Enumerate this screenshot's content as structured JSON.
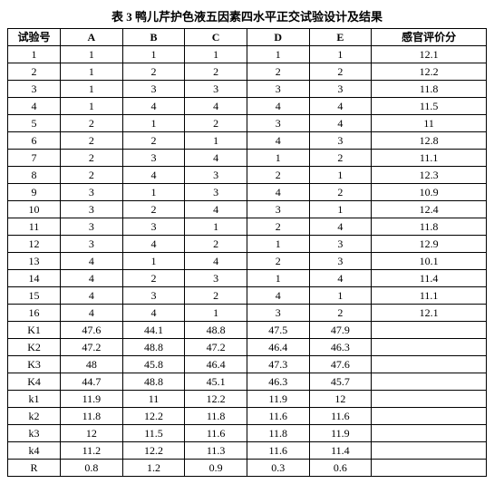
{
  "title": "表 3  鸭儿芹护色液五因素四水平正交试验设计及结果",
  "table": {
    "type": "table",
    "columns": [
      "试验号",
      "A",
      "B",
      "C",
      "D",
      "E",
      "感官评价分"
    ],
    "rows": [
      [
        "1",
        "1",
        "1",
        "1",
        "1",
        "1",
        "12.1"
      ],
      [
        "2",
        "1",
        "2",
        "2",
        "2",
        "2",
        "12.2"
      ],
      [
        "3",
        "1",
        "3",
        "3",
        "3",
        "3",
        "11.8"
      ],
      [
        "4",
        "1",
        "4",
        "4",
        "4",
        "4",
        "11.5"
      ],
      [
        "5",
        "2",
        "1",
        "2",
        "3",
        "4",
        "11"
      ],
      [
        "6",
        "2",
        "2",
        "1",
        "4",
        "3",
        "12.8"
      ],
      [
        "7",
        "2",
        "3",
        "4",
        "1",
        "2",
        "11.1"
      ],
      [
        "8",
        "2",
        "4",
        "3",
        "2",
        "1",
        "12.3"
      ],
      [
        "9",
        "3",
        "1",
        "3",
        "4",
        "2",
        "10.9"
      ],
      [
        "10",
        "3",
        "2",
        "4",
        "3",
        "1",
        "12.4"
      ],
      [
        "11",
        "3",
        "3",
        "1",
        "2",
        "4",
        "11.8"
      ],
      [
        "12",
        "3",
        "4",
        "2",
        "1",
        "3",
        "12.9"
      ],
      [
        "13",
        "4",
        "1",
        "4",
        "2",
        "3",
        "10.1"
      ],
      [
        "14",
        "4",
        "2",
        "3",
        "1",
        "4",
        "11.4"
      ],
      [
        "15",
        "4",
        "3",
        "2",
        "4",
        "1",
        "11.1"
      ],
      [
        "16",
        "4",
        "4",
        "1",
        "3",
        "2",
        "12.1"
      ],
      [
        "K1",
        "47.6",
        "44.1",
        "48.8",
        "47.5",
        "47.9",
        ""
      ],
      [
        "K2",
        "47.2",
        "48.8",
        "47.2",
        "46.4",
        "46.3",
        ""
      ],
      [
        "K3",
        "48",
        "45.8",
        "46.4",
        "47.3",
        "47.6",
        ""
      ],
      [
        "K4",
        "44.7",
        "48.8",
        "45.1",
        "46.3",
        "45.7",
        ""
      ],
      [
        "k1",
        "11.9",
        "11",
        "12.2",
        "11.9",
        "12",
        ""
      ],
      [
        "k2",
        "11.8",
        "12.2",
        "11.8",
        "11.6",
        "11.6",
        ""
      ],
      [
        "k3",
        "12",
        "11.5",
        "11.6",
        "11.8",
        "11.9",
        ""
      ],
      [
        "k4",
        "11.2",
        "12.2",
        "11.3",
        "11.6",
        "11.4",
        ""
      ],
      [
        "R",
        "0.8",
        "1.2",
        "0.9",
        "0.3",
        "0.6",
        ""
      ]
    ],
    "background_color": "#ffffff",
    "border_color": "#000000",
    "font_size": 12,
    "header_fontweight": "bold"
  }
}
